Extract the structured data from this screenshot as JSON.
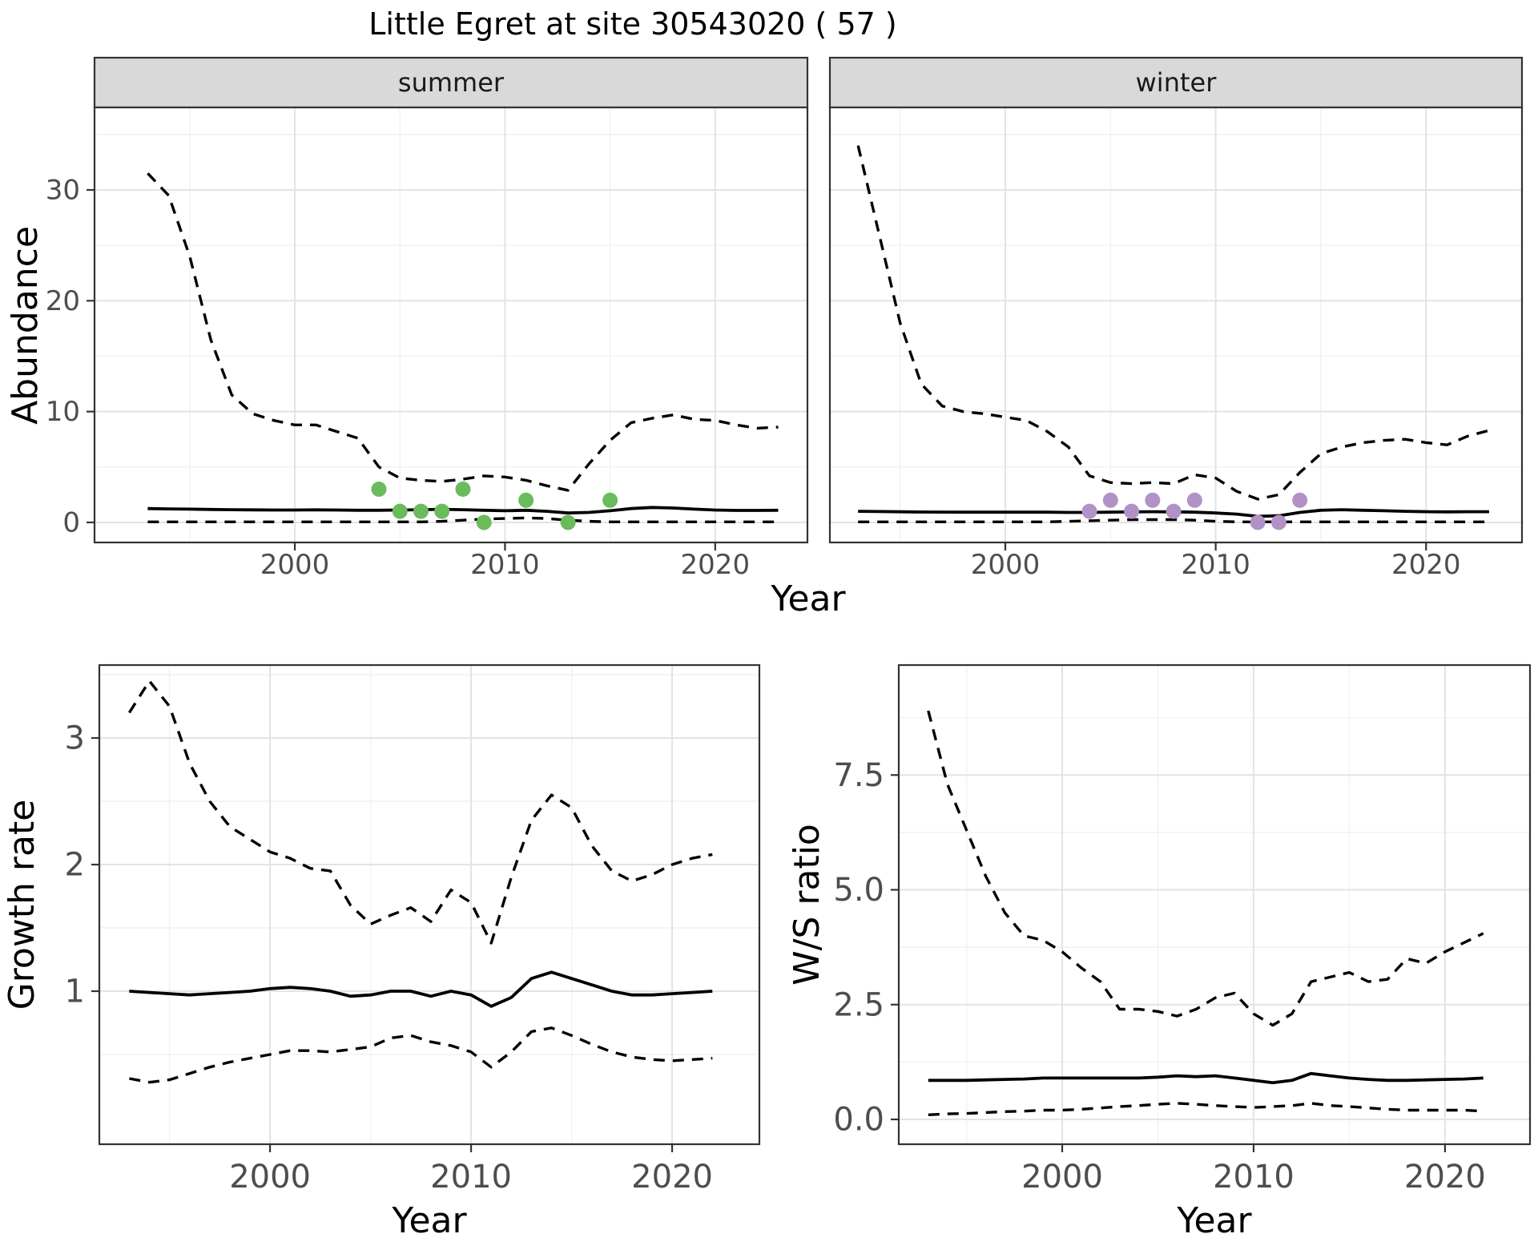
{
  "title": "Little Egret at site 30543020 ( 57 )",
  "colors": {
    "summer_points": "#6ABB5C",
    "winter_points": "#B192C6",
    "line": "#000000",
    "strip_bg": "#D9D9D9",
    "panel_border": "#333333",
    "grid_major": "#E3E3E3",
    "grid_minor": "#F1F1F1",
    "tick_text": "#4D4D4D",
    "axis_title": "#000000"
  },
  "chart_data": [
    {
      "type": "line",
      "facet": "summer",
      "ylabel": "Abundance",
      "xlabel": "Year",
      "x": [
        1993,
        1994,
        1995,
        1996,
        1997,
        1998,
        1999,
        2000,
        2001,
        2002,
        2003,
        2004,
        2005,
        2006,
        2007,
        2008,
        2009,
        2010,
        2011,
        2012,
        2013,
        2014,
        2015,
        2016,
        2017,
        2018,
        2019,
        2020,
        2021,
        2022,
        2023
      ],
      "series": [
        {
          "name": "upper_ci",
          "linetype": "dashed",
          "values": [
            31.5,
            29.5,
            24,
            16.5,
            11.5,
            9.8,
            9.2,
            8.8,
            8.8,
            8.2,
            7.6,
            5.0,
            4.0,
            3.8,
            3.7,
            3.9,
            4.2,
            4.1,
            3.8,
            3.3,
            2.9,
            5.3,
            7.4,
            9.0,
            9.4,
            9.7,
            9.3,
            9.2,
            8.8,
            8.5,
            8.6
          ]
        },
        {
          "name": "fitted_index",
          "linetype": "solid",
          "values": [
            1.25,
            1.22,
            1.2,
            1.17,
            1.15,
            1.13,
            1.12,
            1.12,
            1.13,
            1.12,
            1.1,
            1.1,
            1.12,
            1.15,
            1.18,
            1.15,
            1.1,
            1.05,
            1.1,
            1.0,
            0.85,
            0.9,
            1.05,
            1.25,
            1.35,
            1.3,
            1.2,
            1.12,
            1.08,
            1.08,
            1.1
          ]
        },
        {
          "name": "lower_ci",
          "linetype": "dashed",
          "values": [
            0.05,
            0.05,
            0.05,
            0.05,
            0.05,
            0.05,
            0.05,
            0.05,
            0.05,
            0.05,
            0.05,
            0.05,
            0.05,
            0.05,
            0.1,
            0.2,
            0.3,
            0.35,
            0.4,
            0.35,
            0.2,
            0.1,
            0.05,
            0.05,
            0.05,
            0.05,
            0.05,
            0.05,
            0.05,
            0.05,
            0.05
          ]
        }
      ],
      "points": {
        "name": "observed_counts",
        "color": "#6ABB5C",
        "x": [
          2004,
          2005,
          2006,
          2007,
          2008,
          2009,
          2011,
          2013,
          2015
        ],
        "y": [
          3,
          1,
          1,
          1,
          3,
          0,
          2,
          0,
          2
        ]
      },
      "x_ticks": [
        2000,
        2010,
        2020
      ],
      "x_tick_labels": [
        "2000",
        "2010",
        "2020"
      ],
      "x_minor": [
        1995,
        2005,
        2015
      ],
      "y_ticks": [
        0,
        10,
        20,
        30
      ],
      "y_tick_labels": [
        "0",
        "10",
        "20",
        "30"
      ],
      "y_minor": [
        5,
        15,
        25,
        35
      ],
      "x_domain": [
        1990.47,
        2024.39
      ],
      "y_domain": [
        -1.81,
        37.45
      ],
      "grid": true,
      "legend": "none"
    },
    {
      "type": "line",
      "facet": "winter",
      "ylabel": "Abundance",
      "xlabel": "Year",
      "x": [
        1993,
        1994,
        1995,
        1996,
        1997,
        1998,
        1999,
        2000,
        2001,
        2002,
        2003,
        2004,
        2005,
        2006,
        2007,
        2008,
        2009,
        2010,
        2011,
        2012,
        2013,
        2014,
        2015,
        2016,
        2017,
        2018,
        2019,
        2020,
        2021,
        2022,
        2023
      ],
      "series": [
        {
          "name": "upper_ci",
          "linetype": "dashed",
          "values": [
            34,
            26,
            18,
            12.5,
            10.5,
            10,
            9.8,
            9.5,
            9.2,
            8.2,
            6.8,
            4.2,
            3.6,
            3.5,
            3.6,
            3.5,
            4.3,
            4.0,
            2.8,
            2.1,
            2.5,
            4.5,
            6.2,
            6.8,
            7.2,
            7.4,
            7.5,
            7.2,
            7.0,
            7.8,
            8.3
          ]
        },
        {
          "name": "fitted_index",
          "linetype": "solid",
          "values": [
            1.0,
            0.98,
            0.96,
            0.94,
            0.93,
            0.92,
            0.92,
            0.92,
            0.92,
            0.92,
            0.9,
            0.9,
            0.92,
            0.95,
            0.97,
            0.95,
            0.92,
            0.85,
            0.75,
            0.55,
            0.6,
            0.9,
            1.1,
            1.15,
            1.1,
            1.05,
            1.0,
            0.97,
            0.95,
            0.97,
            0.97
          ]
        },
        {
          "name": "lower_ci",
          "linetype": "dashed",
          "values": [
            0.05,
            0.05,
            0.05,
            0.05,
            0.05,
            0.05,
            0.05,
            0.05,
            0.05,
            0.05,
            0.1,
            0.15,
            0.2,
            0.25,
            0.25,
            0.25,
            0.2,
            0.1,
            0.05,
            0.05,
            0.05,
            0.05,
            0.05,
            0.05,
            0.05,
            0.05,
            0.05,
            0.05,
            0.05,
            0.05,
            0.05
          ]
        }
      ],
      "points": {
        "name": "observed_counts",
        "color": "#B192C6",
        "x": [
          2004,
          2005,
          2006,
          2007,
          2008,
          2009,
          2012,
          2013,
          2014
        ],
        "y": [
          1,
          2,
          1,
          2,
          1,
          2,
          0,
          0,
          2
        ]
      },
      "x_ticks": [
        2000,
        2010,
        2020
      ],
      "x_tick_labels": [
        "2000",
        "2010",
        "2020"
      ],
      "x_minor": [
        1995,
        2005,
        2015
      ],
      "y_ticks": [
        0,
        10,
        20,
        30
      ],
      "y_tick_labels": [
        "0",
        "10",
        "20",
        "30"
      ],
      "y_minor": [
        5,
        15,
        25,
        35
      ],
      "x_domain": [
        1991.66,
        2024.56
      ],
      "y_domain": [
        -1.81,
        37.45
      ],
      "grid": true,
      "legend": "none"
    },
    {
      "type": "line",
      "facet": null,
      "ylabel": "Growth rate",
      "xlabel": "Year",
      "x": [
        1993,
        1994,
        1995,
        1996,
        1997,
        1998,
        1999,
        2000,
        2001,
        2002,
        2003,
        2004,
        2005,
        2006,
        2007,
        2008,
        2009,
        2010,
        2011,
        2012,
        2013,
        2014,
        2015,
        2016,
        2017,
        2018,
        2019,
        2020,
        2021,
        2022
      ],
      "series": [
        {
          "name": "upper_ci",
          "linetype": "dashed",
          "values": [
            3.2,
            3.45,
            3.25,
            2.8,
            2.5,
            2.3,
            2.2,
            2.1,
            2.05,
            1.97,
            1.95,
            1.68,
            1.53,
            1.6,
            1.66,
            1.55,
            1.8,
            1.7,
            1.38,
            1.9,
            2.35,
            2.55,
            2.45,
            2.15,
            1.95,
            1.87,
            1.92,
            2.0,
            2.05,
            2.08
          ]
        },
        {
          "name": "fitted_rate",
          "linetype": "solid",
          "values": [
            1.0,
            0.99,
            0.98,
            0.97,
            0.98,
            0.99,
            1.0,
            1.02,
            1.03,
            1.02,
            1.0,
            0.96,
            0.97,
            1.0,
            1.0,
            0.96,
            1.0,
            0.97,
            0.88,
            0.95,
            1.1,
            1.15,
            1.1,
            1.05,
            1.0,
            0.97,
            0.97,
            0.98,
            0.99,
            1.0
          ]
        },
        {
          "name": "lower_ci",
          "linetype": "dashed",
          "values": [
            0.31,
            0.28,
            0.3,
            0.35,
            0.4,
            0.44,
            0.47,
            0.5,
            0.53,
            0.53,
            0.52,
            0.54,
            0.56,
            0.63,
            0.65,
            0.6,
            0.57,
            0.52,
            0.4,
            0.52,
            0.68,
            0.71,
            0.65,
            0.58,
            0.52,
            0.48,
            0.46,
            0.45,
            0.46,
            0.47
          ]
        }
      ],
      "points": null,
      "x_ticks": [
        2000,
        2010,
        2020
      ],
      "x_tick_labels": [
        "2000",
        "2010",
        "2020"
      ],
      "x_minor": [
        1995,
        2005,
        2015
      ],
      "y_ticks": [
        1,
        2,
        3
      ],
      "y_tick_labels": [
        "1",
        "2",
        "3"
      ],
      "y_minor": [
        0.5,
        1.5,
        2.5,
        3.5
      ],
      "x_domain": [
        1991.51,
        2024.34
      ],
      "y_domain": [
        -0.209,
        3.576
      ],
      "grid": true,
      "legend": "none"
    },
    {
      "type": "line",
      "facet": null,
      "ylabel": "W/S ratio",
      "xlabel": "Year",
      "x": [
        1993,
        1994,
        1995,
        1996,
        1997,
        1998,
        1999,
        2000,
        2001,
        2002,
        2003,
        2004,
        2005,
        2006,
        2007,
        2008,
        2009,
        2010,
        2011,
        2012,
        2013,
        2014,
        2015,
        2016,
        2017,
        2018,
        2019,
        2020,
        2021,
        2022
      ],
      "series": [
        {
          "name": "upper_ci",
          "linetype": "dashed",
          "values": [
            8.9,
            7.3,
            6.3,
            5.3,
            4.5,
            4.0,
            3.9,
            3.65,
            3.3,
            3.0,
            2.4,
            2.4,
            2.35,
            2.25,
            2.4,
            2.65,
            2.75,
            2.3,
            2.05,
            2.3,
            3.0,
            3.1,
            3.2,
            3.0,
            3.05,
            3.5,
            3.4,
            3.65,
            3.85,
            4.05
          ]
        },
        {
          "name": "fitted_ratio",
          "linetype": "solid",
          "values": [
            0.85,
            0.85,
            0.85,
            0.86,
            0.87,
            0.88,
            0.9,
            0.9,
            0.9,
            0.9,
            0.9,
            0.9,
            0.92,
            0.95,
            0.93,
            0.95,
            0.9,
            0.85,
            0.8,
            0.85,
            1.0,
            0.95,
            0.9,
            0.87,
            0.85,
            0.85,
            0.86,
            0.87,
            0.88,
            0.9
          ]
        },
        {
          "name": "lower_ci",
          "linetype": "dashed",
          "values": [
            0.1,
            0.12,
            0.13,
            0.15,
            0.17,
            0.18,
            0.2,
            0.2,
            0.22,
            0.25,
            0.28,
            0.3,
            0.33,
            0.35,
            0.33,
            0.3,
            0.28,
            0.26,
            0.28,
            0.3,
            0.35,
            0.3,
            0.28,
            0.25,
            0.22,
            0.2,
            0.2,
            0.2,
            0.2,
            0.18
          ]
        }
      ],
      "points": null,
      "x_ticks": [
        2000,
        2010,
        2020
      ],
      "x_tick_labels": [
        "2000",
        "2010",
        "2020"
      ],
      "x_minor": [
        1995,
        2005,
        2015
      ],
      "y_ticks": [
        0,
        2.5,
        5,
        7.5
      ],
      "y_tick_labels": [
        "0.0",
        "2.5",
        "5.0",
        "7.5"
      ],
      "y_minor": [
        1.25,
        3.75,
        6.25,
        8.75
      ],
      "x_domain": [
        1991.46,
        2024.44
      ],
      "y_domain": [
        -0.541,
        9.895
      ],
      "grid": true,
      "legend": "none"
    }
  ]
}
